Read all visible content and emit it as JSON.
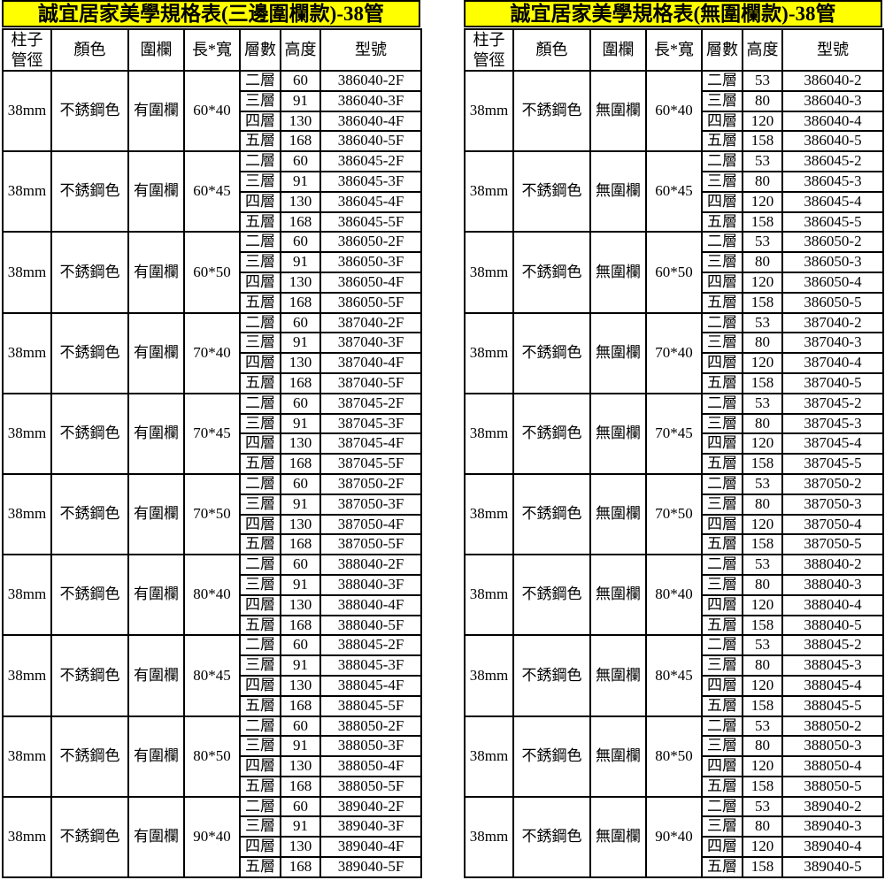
{
  "colors": {
    "page_bg": "#ffffff",
    "title_bg": "#ffff00",
    "border": "#000000",
    "text": "#000000"
  },
  "tables": [
    {
      "title": "誠宜居家美學規格表(三邊圍欄款)-38管",
      "headers": [
        "柱子\n管徑",
        "顏色",
        "圍欄",
        "長*寬",
        "層數",
        "高度",
        "型號"
      ],
      "groups": [
        {
          "diameter": "38mm",
          "color": "不銹鋼色",
          "fence": "有圍欄",
          "size": "60*40",
          "rows": [
            [
              "二層",
              "60",
              "386040-2F"
            ],
            [
              "三層",
              "91",
              "386040-3F"
            ],
            [
              "四層",
              "130",
              "386040-4F"
            ],
            [
              "五層",
              "168",
              "386040-5F"
            ]
          ]
        },
        {
          "diameter": "38mm",
          "color": "不銹鋼色",
          "fence": "有圍欄",
          "size": "60*45",
          "rows": [
            [
              "二層",
              "60",
              "386045-2F"
            ],
            [
              "三層",
              "91",
              "386045-3F"
            ],
            [
              "四層",
              "130",
              "386045-4F"
            ],
            [
              "五層",
              "168",
              "386045-5F"
            ]
          ]
        },
        {
          "diameter": "38mm",
          "color": "不銹鋼色",
          "fence": "有圍欄",
          "size": "60*50",
          "rows": [
            [
              "二層",
              "60",
              "386050-2F"
            ],
            [
              "三層",
              "91",
              "386050-3F"
            ],
            [
              "四層",
              "130",
              "386050-4F"
            ],
            [
              "五層",
              "168",
              "386050-5F"
            ]
          ]
        },
        {
          "diameter": "38mm",
          "color": "不銹鋼色",
          "fence": "有圍欄",
          "size": "70*40",
          "rows": [
            [
              "二層",
              "60",
              "387040-2F"
            ],
            [
              "三層",
              "91",
              "387040-3F"
            ],
            [
              "四層",
              "130",
              "387040-4F"
            ],
            [
              "五層",
              "168",
              "387040-5F"
            ]
          ]
        },
        {
          "diameter": "38mm",
          "color": "不銹鋼色",
          "fence": "有圍欄",
          "size": "70*45",
          "rows": [
            [
              "二層",
              "60",
              "387045-2F"
            ],
            [
              "三層",
              "91",
              "387045-3F"
            ],
            [
              "四層",
              "130",
              "387045-4F"
            ],
            [
              "五層",
              "168",
              "387045-5F"
            ]
          ]
        },
        {
          "diameter": "38mm",
          "color": "不銹鋼色",
          "fence": "有圍欄",
          "size": "70*50",
          "rows": [
            [
              "二層",
              "60",
              "387050-2F"
            ],
            [
              "三層",
              "91",
              "387050-3F"
            ],
            [
              "四層",
              "130",
              "387050-4F"
            ],
            [
              "五層",
              "168",
              "387050-5F"
            ]
          ]
        },
        {
          "diameter": "38mm",
          "color": "不銹鋼色",
          "fence": "有圍欄",
          "size": "80*40",
          "rows": [
            [
              "二層",
              "60",
              "388040-2F"
            ],
            [
              "三層",
              "91",
              "388040-3F"
            ],
            [
              "四層",
              "130",
              "388040-4F"
            ],
            [
              "五層",
              "168",
              "388040-5F"
            ]
          ]
        },
        {
          "diameter": "38mm",
          "color": "不銹鋼色",
          "fence": "有圍欄",
          "size": "80*45",
          "rows": [
            [
              "二層",
              "60",
              "388045-2F"
            ],
            [
              "三層",
              "91",
              "388045-3F"
            ],
            [
              "四層",
              "130",
              "388045-4F"
            ],
            [
              "五層",
              "168",
              "388045-5F"
            ]
          ]
        },
        {
          "diameter": "38mm",
          "color": "不銹鋼色",
          "fence": "有圍欄",
          "size": "80*50",
          "rows": [
            [
              "二層",
              "60",
              "388050-2F"
            ],
            [
              "三層",
              "91",
              "388050-3F"
            ],
            [
              "四層",
              "130",
              "388050-4F"
            ],
            [
              "五層",
              "168",
              "388050-5F"
            ]
          ]
        },
        {
          "diameter": "38mm",
          "color": "不銹鋼色",
          "fence": "有圍欄",
          "size": "90*40",
          "rows": [
            [
              "二層",
              "60",
              "389040-2F"
            ],
            [
              "三層",
              "91",
              "389040-3F"
            ],
            [
              "四層",
              "130",
              "389040-4F"
            ],
            [
              "五層",
              "168",
              "389040-5F"
            ]
          ]
        }
      ]
    },
    {
      "title": "誠宜居家美學規格表(無圍欄款)-38管",
      "headers": [
        "柱子\n管徑",
        "顏色",
        "圍欄",
        "長*寬",
        "層數",
        "高度",
        "型號"
      ],
      "groups": [
        {
          "diameter": "38mm",
          "color": "不銹鋼色",
          "fence": "無圍欄",
          "size": "60*40",
          "rows": [
            [
              "二層",
              "53",
              "386040-2"
            ],
            [
              "三層",
              "80",
              "386040-3"
            ],
            [
              "四層",
              "120",
              "386040-4"
            ],
            [
              "五層",
              "158",
              "386040-5"
            ]
          ]
        },
        {
          "diameter": "38mm",
          "color": "不銹鋼色",
          "fence": "無圍欄",
          "size": "60*45",
          "rows": [
            [
              "二層",
              "53",
              "386045-2"
            ],
            [
              "三層",
              "80",
              "386045-3"
            ],
            [
              "四層",
              "120",
              "386045-4"
            ],
            [
              "五層",
              "158",
              "386045-5"
            ]
          ]
        },
        {
          "diameter": "38mm",
          "color": "不銹鋼色",
          "fence": "無圍欄",
          "size": "60*50",
          "rows": [
            [
              "二層",
              "53",
              "386050-2"
            ],
            [
              "三層",
              "80",
              "386050-3"
            ],
            [
              "四層",
              "120",
              "386050-4"
            ],
            [
              "五層",
              "158",
              "386050-5"
            ]
          ]
        },
        {
          "diameter": "38mm",
          "color": "不銹鋼色",
          "fence": "無圍欄",
          "size": "70*40",
          "rows": [
            [
              "二層",
              "53",
              "387040-2"
            ],
            [
              "三層",
              "80",
              "387040-3"
            ],
            [
              "四層",
              "120",
              "387040-4"
            ],
            [
              "五層",
              "158",
              "387040-5"
            ]
          ]
        },
        {
          "diameter": "38mm",
          "color": "不銹鋼色",
          "fence": "無圍欄",
          "size": "70*45",
          "rows": [
            [
              "二層",
              "53",
              "387045-2"
            ],
            [
              "三層",
              "80",
              "387045-3"
            ],
            [
              "四層",
              "120",
              "387045-4"
            ],
            [
              "五層",
              "158",
              "387045-5"
            ]
          ]
        },
        {
          "diameter": "38mm",
          "color": "不銹鋼色",
          "fence": "無圍欄",
          "size": "70*50",
          "rows": [
            [
              "二層",
              "53",
              "387050-2"
            ],
            [
              "三層",
              "80",
              "387050-3"
            ],
            [
              "四層",
              "120",
              "387050-4"
            ],
            [
              "五層",
              "158",
              "387050-5"
            ]
          ]
        },
        {
          "diameter": "38mm",
          "color": "不銹鋼色",
          "fence": "無圍欄",
          "size": "80*40",
          "rows": [
            [
              "二層",
              "53",
              "388040-2"
            ],
            [
              "三層",
              "80",
              "388040-3"
            ],
            [
              "四層",
              "120",
              "388040-4"
            ],
            [
              "五層",
              "158",
              "388040-5"
            ]
          ]
        },
        {
          "diameter": "38mm",
          "color": "不銹鋼色",
          "fence": "無圍欄",
          "size": "80*45",
          "rows": [
            [
              "二層",
              "53",
              "388045-2"
            ],
            [
              "三層",
              "80",
              "388045-3"
            ],
            [
              "四層",
              "120",
              "388045-4"
            ],
            [
              "五層",
              "158",
              "388045-5"
            ]
          ]
        },
        {
          "diameter": "38mm",
          "color": "不銹鋼色",
          "fence": "無圍欄",
          "size": "80*50",
          "rows": [
            [
              "二層",
              "53",
              "388050-2"
            ],
            [
              "三層",
              "80",
              "388050-3"
            ],
            [
              "四層",
              "120",
              "388050-4"
            ],
            [
              "五層",
              "158",
              "388050-5"
            ]
          ]
        },
        {
          "diameter": "38mm",
          "color": "不銹鋼色",
          "fence": "無圍欄",
          "size": "90*40",
          "rows": [
            [
              "二層",
              "53",
              "389040-2"
            ],
            [
              "三層",
              "80",
              "389040-3"
            ],
            [
              "四層",
              "120",
              "389040-4"
            ],
            [
              "五層",
              "158",
              "389040-5"
            ]
          ]
        }
      ]
    }
  ]
}
